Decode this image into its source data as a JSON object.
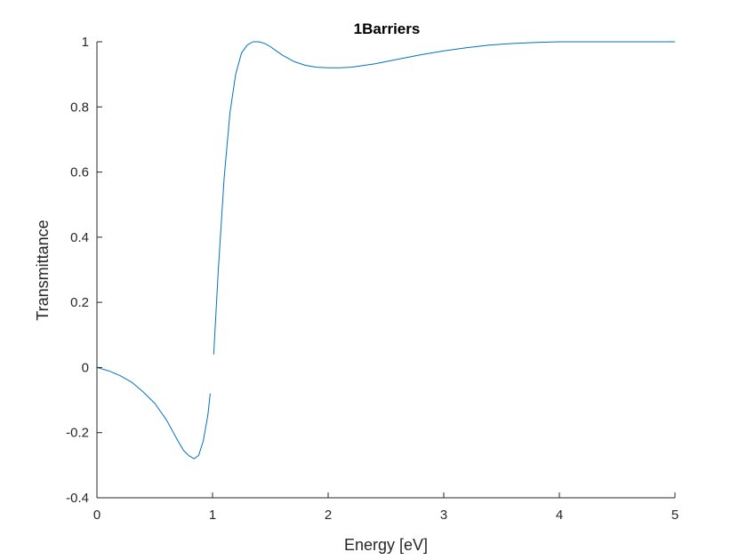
{
  "chart_data": {
    "type": "line",
    "title": "1Barriers",
    "xlabel": "Energy [eV]",
    "ylabel": "Transmittance",
    "xlim": [
      0,
      5
    ],
    "ylim": [
      -0.4,
      1
    ],
    "xticks": [
      0,
      1,
      2,
      3,
      4,
      5
    ],
    "xtick_labels": [
      "0",
      "1",
      "2",
      "3",
      "4",
      "5"
    ],
    "yticks": [
      -0.4,
      -0.2,
      0,
      0.2,
      0.4,
      0.6,
      0.8,
      1
    ],
    "ytick_labels": [
      "-0.4",
      "-0.2",
      "0",
      "0.2",
      "0.4",
      "0.6",
      "0.8",
      "1"
    ],
    "grid": false,
    "legend": "none",
    "line_color": "#0072BD",
    "series": [
      {
        "segments": [
          {
            "x": [
              0,
              0.1,
              0.2,
              0.3,
              0.4,
              0.5,
              0.6,
              0.7,
              0.75,
              0.8,
              0.84,
              0.88,
              0.92,
              0.96,
              0.98
            ],
            "y": [
              0,
              -0.01,
              -0.025,
              -0.045,
              -0.075,
              -0.11,
              -0.16,
              -0.225,
              -0.255,
              -0.272,
              -0.28,
              -0.27,
              -0.225,
              -0.145,
              -0.08
            ]
          },
          {
            "x": [
              1.01,
              1.05,
              1.1,
              1.15,
              1.2,
              1.25,
              1.3,
              1.35,
              1.4,
              1.45,
              1.5,
              1.6,
              1.7,
              1.8,
              1.9,
              2.0,
              2.1,
              2.2,
              2.4,
              2.6,
              2.8,
              3.0,
              3.2,
              3.4,
              3.6,
              3.8,
              4.0,
              4.2,
              4.5,
              5.0
            ],
            "y": [
              0.04,
              0.3,
              0.58,
              0.78,
              0.9,
              0.965,
              0.99,
              1.0,
              1.0,
              0.995,
              0.985,
              0.96,
              0.94,
              0.928,
              0.922,
              0.92,
              0.92,
              0.922,
              0.932,
              0.946,
              0.96,
              0.972,
              0.982,
              0.99,
              0.995,
              0.998,
              1.0,
              1.0,
              1.0,
              1.0
            ]
          }
        ]
      }
    ]
  }
}
